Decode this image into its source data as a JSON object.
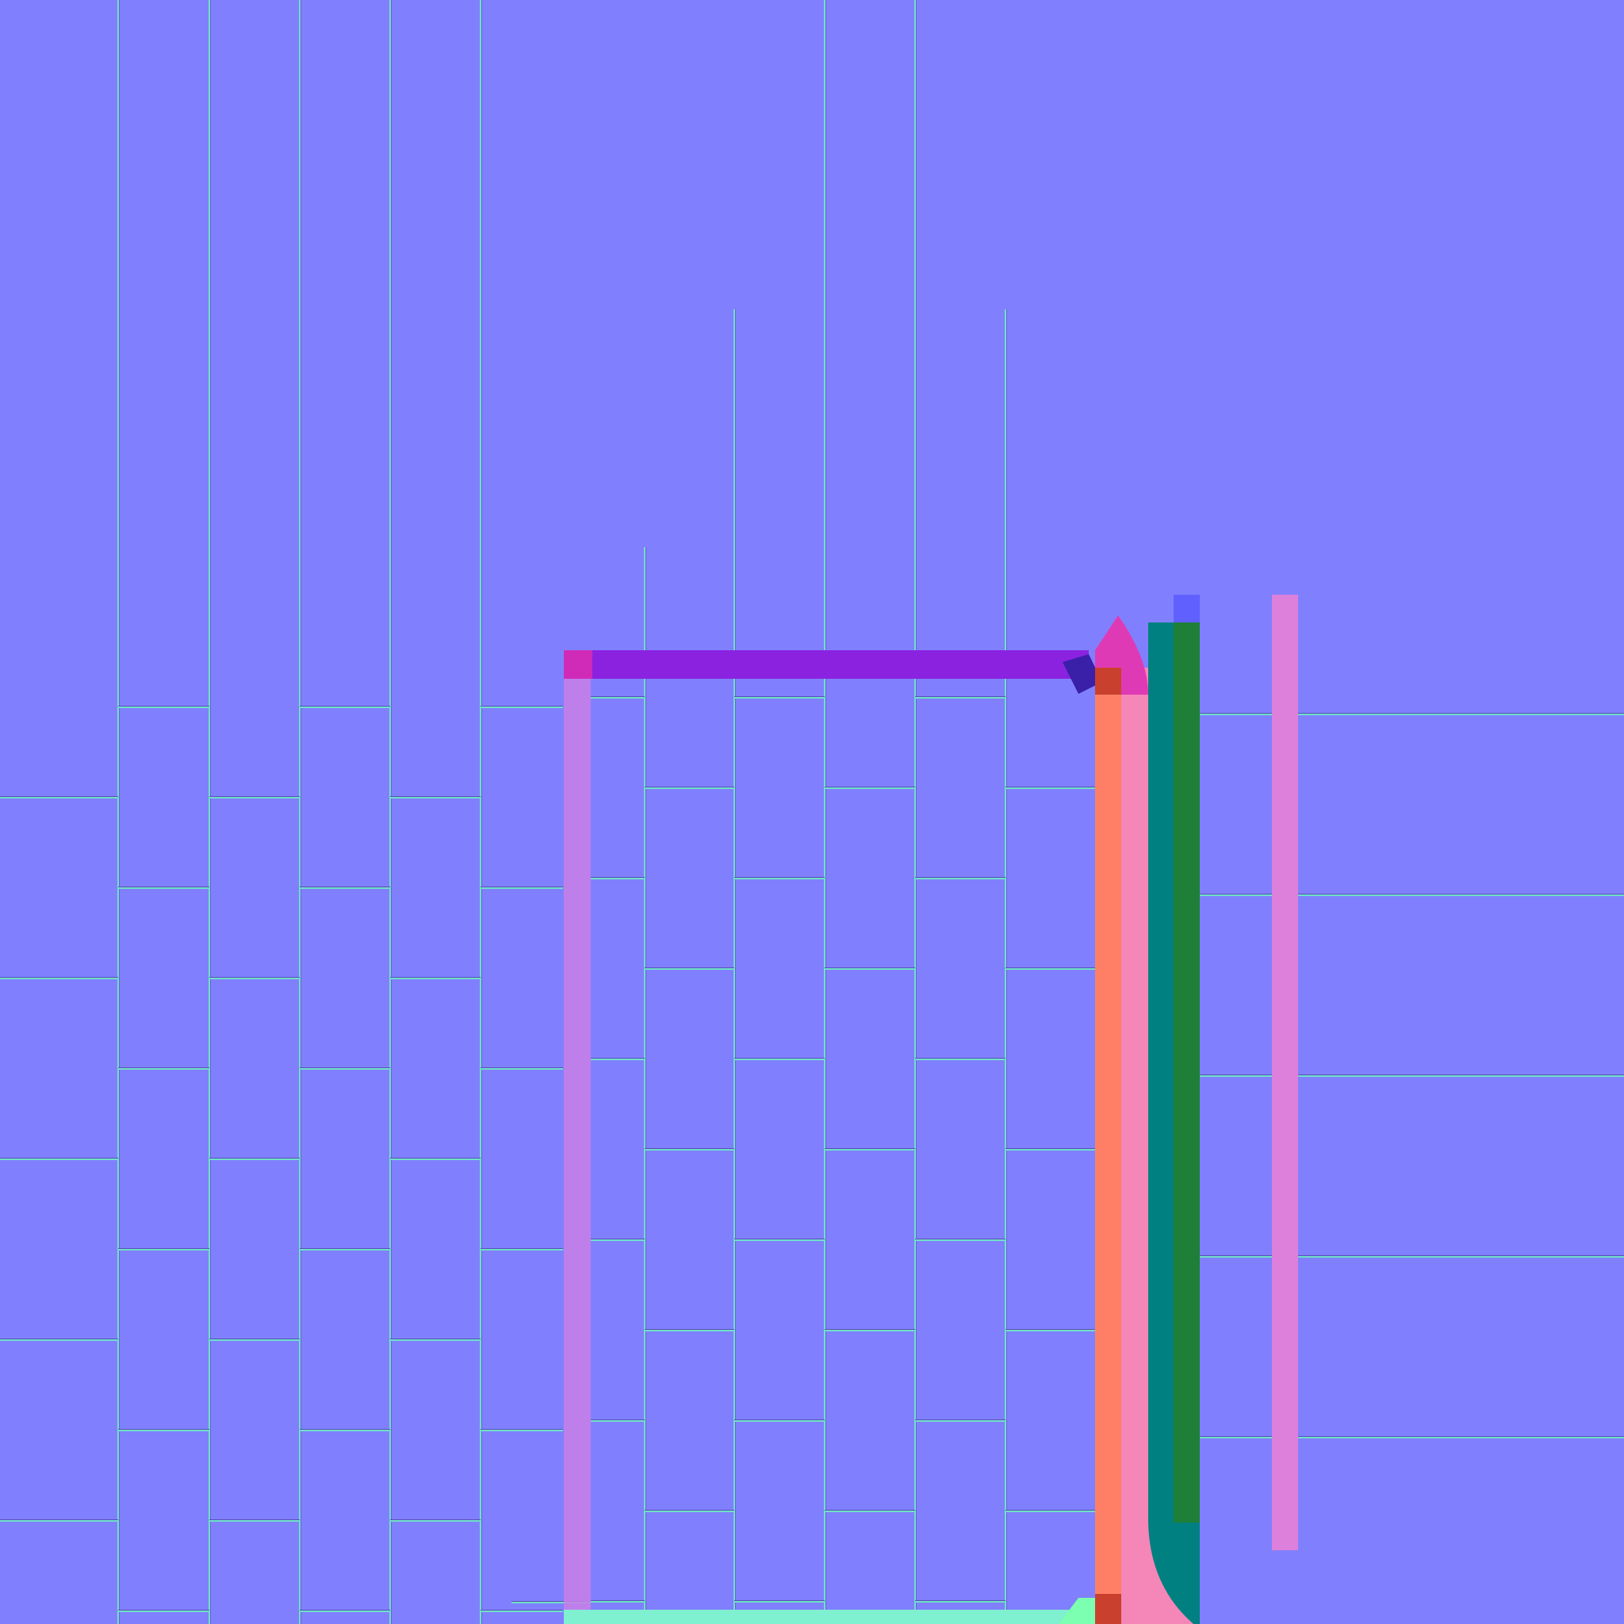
{
  "texture": {
    "kind": "tangent-space normal map",
    "colors": {
      "flat_normal": "#8080fe",
      "seam_highlight": "#6fe0c8",
      "seam_shadow": "#5a4fb8",
      "top_bevel": "#8a22e0",
      "top_bevel_corner": "#d02ab8",
      "bottom_bevel": "#7ff0d0",
      "left_trim": "#c97fe8",
      "right_trim_orange": "#ff7f66",
      "right_trim_pink": "#f586b8",
      "right_trim_magenta": "#df3ab5",
      "right_trim_red": "#c9412e",
      "teal_band": "#008080",
      "green_band": "#1f7f38",
      "blue_cap": "#6060ff",
      "pink_strip": "#dc80dc",
      "corner_shadow": "#3a1fa8",
      "corner_glow": "#7cffb0"
    }
  }
}
